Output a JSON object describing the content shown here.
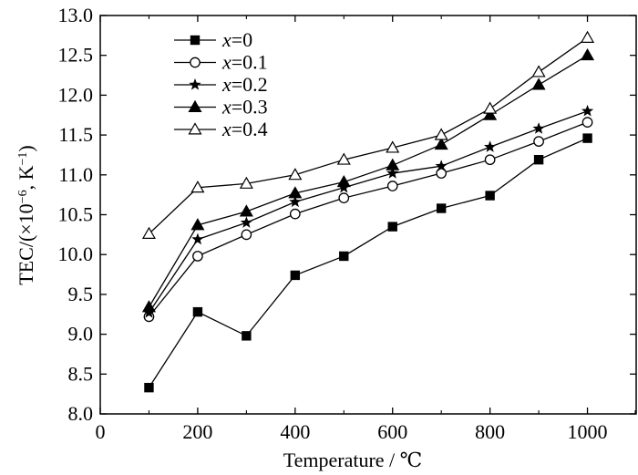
{
  "chart_data": {
    "type": "line",
    "xlabel": "Temperature / ℃",
    "ylabel_prefix": "TEC/(×10",
    "ylabel_sup1": "−6",
    "ylabel_mid": ", K",
    "ylabel_sup2": "−1",
    "ylabel_suffix": ")",
    "xlim": [
      0,
      1100
    ],
    "ylim": [
      8.0,
      13.0
    ],
    "x_ticks": [
      "0",
      "200",
      "400",
      "600",
      "800",
      "1000"
    ],
    "y_ticks": [
      "8.0",
      "8.5",
      "9.0",
      "9.5",
      "10.0",
      "10.5",
      "11.0",
      "11.5",
      "12.0",
      "12.5",
      "13.0"
    ],
    "grid": false,
    "legend_position": "top-left",
    "x": [
      100,
      200,
      300,
      400,
      500,
      600,
      700,
      800,
      900,
      1000
    ],
    "series": [
      {
        "name": "x=0",
        "var": "x",
        "eq": "=0",
        "marker": "square-filled",
        "values": [
          8.33,
          9.28,
          8.98,
          9.74,
          9.98,
          10.35,
          10.58,
          10.74,
          11.19,
          11.46
        ]
      },
      {
        "name": "x=0.1",
        "var": "x",
        "eq": "=0.1",
        "marker": "circle-open",
        "values": [
          9.22,
          9.98,
          10.25,
          10.51,
          10.71,
          10.86,
          11.02,
          11.19,
          11.42,
          11.66
        ]
      },
      {
        "name": "x=0.2",
        "var": "x",
        "eq": "=0.2",
        "marker": "star-filled",
        "values": [
          9.27,
          10.19,
          10.4,
          10.66,
          10.84,
          11.02,
          11.11,
          11.35,
          11.58,
          11.8
        ]
      },
      {
        "name": "x=0.3",
        "var": "x",
        "eq": "=0.3",
        "marker": "triangle-filled",
        "values": [
          9.34,
          10.37,
          10.54,
          10.77,
          10.91,
          11.12,
          11.38,
          11.75,
          12.13,
          12.5
        ]
      },
      {
        "name": "x=0.4",
        "var": "x",
        "eq": "=0.4",
        "marker": "triangle-open",
        "values": [
          10.26,
          10.84,
          10.89,
          11.0,
          11.19,
          11.34,
          11.5,
          11.83,
          12.29,
          12.72
        ]
      }
    ]
  }
}
